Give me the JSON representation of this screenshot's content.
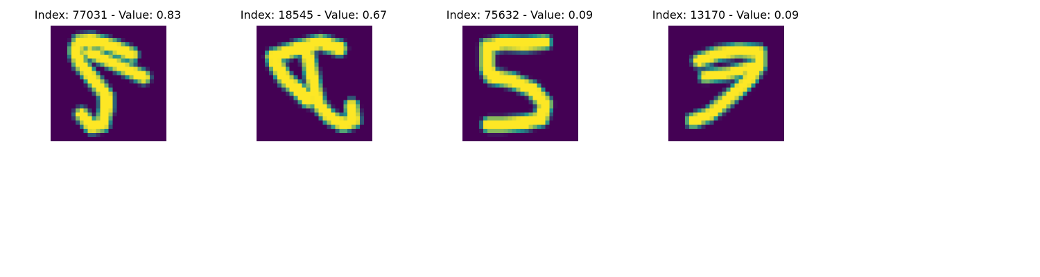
{
  "colors": {
    "background": "#440154",
    "foreground": "#fde725"
  },
  "panels": [
    {
      "title": "Index: 77031 - Value: 0.83",
      "digit": "5"
    },
    {
      "title": "Index: 18545 - Value: 0.67",
      "digit": "unknown"
    },
    {
      "title": "Index: 75632 - Value: 0.09",
      "digit": "5"
    },
    {
      "title": "Index: 13170 - Value: 0.09",
      "digit": "7"
    }
  ]
}
